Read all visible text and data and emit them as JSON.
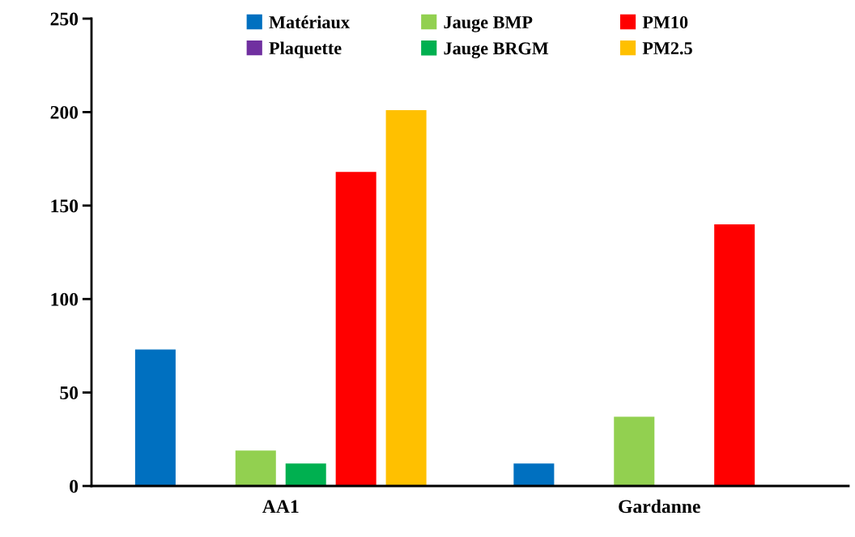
{
  "chart_data": {
    "type": "bar",
    "categories": [
      "AA1",
      "Gardanne"
    ],
    "series": [
      {
        "name": "Matériaux",
        "color": "#0070c0",
        "values": [
          73,
          12
        ]
      },
      {
        "name": "Plaquette",
        "color": "#7030a0",
        "values": [
          null,
          null
        ]
      },
      {
        "name": "Jauge BMP",
        "color": "#92d050",
        "values": [
          19,
          37
        ]
      },
      {
        "name": "Jauge BRGM",
        "color": "#00b050",
        "values": [
          12,
          null
        ]
      },
      {
        "name": "PM10",
        "color": "#ff0000",
        "values": [
          168,
          140
        ]
      },
      {
        "name": "PM2.5",
        "color": "#ffc000",
        "values": [
          201,
          null
        ]
      }
    ],
    "ylim": [
      0,
      250
    ],
    "yticks": [
      0,
      50,
      100,
      150,
      200,
      250
    ],
    "grid": false,
    "legend": "top"
  }
}
